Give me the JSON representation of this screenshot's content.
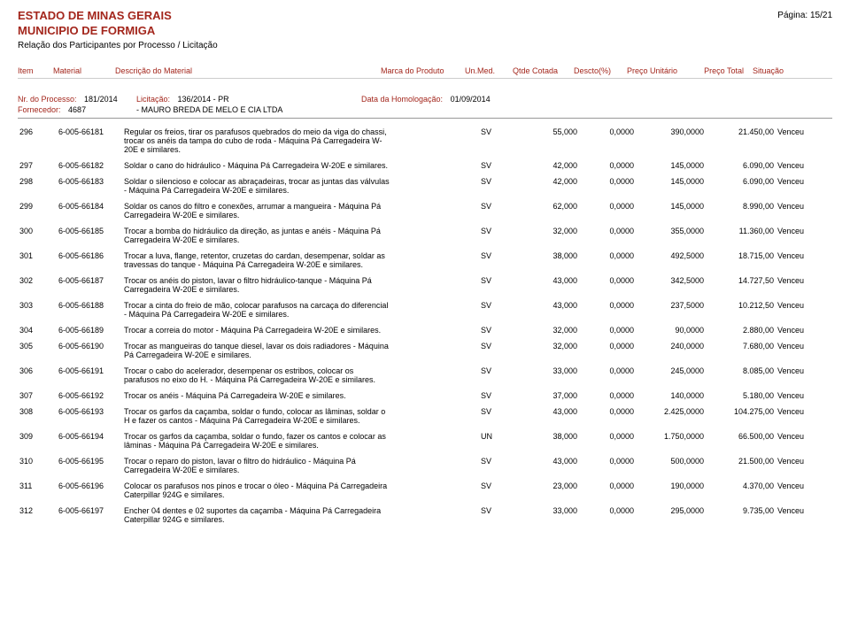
{
  "header": {
    "line1": "ESTADO DE MINAS GERAIS",
    "line2": "MUNICIPIO DE FORMIGA",
    "line3": "Relação dos Participantes por Processo / Licitação",
    "page_no": "Página: 15/21"
  },
  "columns": {
    "item": "Item",
    "material": "Material",
    "descricao": "Descrição do Material",
    "marca": "Marca do Produto",
    "unmed": "Un.Med.",
    "qtde": "Qtde Cotada",
    "descto": "Descto(%)",
    "unit": "Preço Unitário",
    "total": "Preço Total",
    "situacao": "Situação"
  },
  "processo": {
    "nr_lbl": "Nr. do Processo:",
    "nr_val": "181/2014",
    "licit_lbl": "Licitação:",
    "licit_val": "136/2014 - PR",
    "homolog_lbl": "Data da Homologação:",
    "homolog_val": "01/09/2014",
    "forn_lbl": "Fornecedor:",
    "forn_cod": "4687",
    "forn_nome": "- MAURO BREDA DE MELO E CIA LTDA"
  },
  "rows": [
    {
      "item": "296",
      "material": "6-005-66181",
      "desc": "Regular os freios, tirar os parafusos quebrados do meio da viga do chassi, trocar os anéis da tampa do cubo de roda - Máquina Pá Carregadeira W-20E e similares.",
      "marca": "",
      "un": "SV",
      "qtde": "55,000",
      "descto": "0,0000",
      "unit": "390,0000",
      "total": "21.450,00",
      "sit": "Venceu"
    },
    {
      "item": "297",
      "material": "6-005-66182",
      "desc": "Soldar o cano do hidráulico - Máquina Pá Carregadeira W-20E e similares.",
      "marca": "",
      "un": "SV",
      "qtde": "42,000",
      "descto": "0,0000",
      "unit": "145,0000",
      "total": "6.090,00",
      "sit": "Venceu"
    },
    {
      "item": "298",
      "material": "6-005-66183",
      "desc": "Soldar o silencioso e colocar as abraçadeiras, trocar as juntas das válvulas - Máquina Pá Carregadeira W-20E e similares.",
      "marca": "",
      "un": "SV",
      "qtde": "42,000",
      "descto": "0,0000",
      "unit": "145,0000",
      "total": "6.090,00",
      "sit": "Venceu"
    },
    {
      "item": "299",
      "material": "6-005-66184",
      "desc": "Soldar os canos do filtro e conexões, arrumar a mangueira - Máquina Pá Carregadeira W-20E e similares.",
      "marca": "",
      "un": "SV",
      "qtde": "62,000",
      "descto": "0,0000",
      "unit": "145,0000",
      "total": "8.990,00",
      "sit": "Venceu"
    },
    {
      "item": "300",
      "material": "6-005-66185",
      "desc": "Trocar a bomba do hidráulico da direção, as juntas e anéis - Máquina Pá Carregadeira W-20E e similares.",
      "marca": "",
      "un": "SV",
      "qtde": "32,000",
      "descto": "0,0000",
      "unit": "355,0000",
      "total": "11.360,00",
      "sit": "Venceu"
    },
    {
      "item": "301",
      "material": "6-005-66186",
      "desc": "Trocar a luva, flange, retentor, cruzetas do cardan, desempenar, soldar as travessas do tanque - Máquina Pá Carregadeira W-20E e similares.",
      "marca": "",
      "un": "SV",
      "qtde": "38,000",
      "descto": "0,0000",
      "unit": "492,5000",
      "total": "18.715,00",
      "sit": "Venceu"
    },
    {
      "item": "302",
      "material": "6-005-66187",
      "desc": "Trocar os anéis do piston, lavar o filtro hidráulico-tanque - Máquina Pá Carregadeira W-20E e similares.",
      "marca": "",
      "un": "SV",
      "qtde": "43,000",
      "descto": "0,0000",
      "unit": "342,5000",
      "total": "14.727,50",
      "sit": "Venceu"
    },
    {
      "item": "303",
      "material": "6-005-66188",
      "desc": "Trocar a cinta do freio de mão, colocar parafusos na carcaça do diferencial - Máquina Pá Carregadeira W-20E e similares.",
      "marca": "",
      "un": "SV",
      "qtde": "43,000",
      "descto": "0,0000",
      "unit": "237,5000",
      "total": "10.212,50",
      "sit": "Venceu"
    },
    {
      "item": "304",
      "material": "6-005-66189",
      "desc": "Trocar a correia do motor - Máquina Pá Carregadeira W-20E e similares.",
      "marca": "",
      "un": "SV",
      "qtde": "32,000",
      "descto": "0,0000",
      "unit": "90,0000",
      "total": "2.880,00",
      "sit": "Venceu"
    },
    {
      "item": "305",
      "material": "6-005-66190",
      "desc": "Trocar as mangueiras do tanque diesel, lavar os dois radiadores - Máquina Pá Carregadeira W-20E e similares.",
      "marca": "",
      "un": "SV",
      "qtde": "32,000",
      "descto": "0,0000",
      "unit": "240,0000",
      "total": "7.680,00",
      "sit": "Venceu"
    },
    {
      "item": "306",
      "material": "6-005-66191",
      "desc": "Trocar o cabo do acelerador, desempenar os estribos, colocar os parafusos no eixo do H.  - Máquina Pá Carregadeira W-20E e similares.",
      "marca": "",
      "un": "SV",
      "qtde": "33,000",
      "descto": "0,0000",
      "unit": "245,0000",
      "total": "8.085,00",
      "sit": "Venceu"
    },
    {
      "item": "307",
      "material": "6-005-66192",
      "desc": "Trocar os anéis - Máquina Pá Carregadeira W-20E e similares.",
      "marca": "",
      "un": "SV",
      "qtde": "37,000",
      "descto": "0,0000",
      "unit": "140,0000",
      "total": "5.180,00",
      "sit": "Venceu"
    },
    {
      "item": "308",
      "material": "6-005-66193",
      "desc": "Trocar os garfos da caçamba, soldar o fundo, colocar as lâminas, soldar o H e fazer os cantos - Máquina Pá Carregadeira W-20E e similares.",
      "marca": "",
      "un": "SV",
      "qtde": "43,000",
      "descto": "0,0000",
      "unit": "2.425,0000",
      "total": "104.275,00",
      "sit": "Venceu"
    },
    {
      "item": "309",
      "material": "6-005-66194",
      "desc": "Trocar os garfos da caçamba, soldar o fundo, fazer os cantos e colocar as lâminas - Máquina Pá Carregadeira W-20E e similares.",
      "marca": "",
      "un": "UN",
      "qtde": "38,000",
      "descto": "0,0000",
      "unit": "1.750,0000",
      "total": "66.500,00",
      "sit": "Venceu"
    },
    {
      "item": "310",
      "material": "6-005-66195",
      "desc": "Trocar o reparo do piston, lavar o filtro do hidráulico - Máquina Pá Carregadeira W-20E e similares.",
      "marca": "",
      "un": "SV",
      "qtde": "43,000",
      "descto": "0,0000",
      "unit": "500,0000",
      "total": "21.500,00",
      "sit": "Venceu"
    },
    {
      "item": "311",
      "material": "6-005-66196",
      "desc": "Colocar os parafusos nos pinos e trocar o óleo - Máquina Pá Carregadeira Caterpillar 924G e similares.",
      "marca": "",
      "un": "SV",
      "qtde": "23,000",
      "descto": "0,0000",
      "unit": "190,0000",
      "total": "4.370,00",
      "sit": "Venceu"
    },
    {
      "item": "312",
      "material": "6-005-66197",
      "desc": "Encher 04 dentes e 02 suportes da caçamba - Máquina Pá Carregadeira Caterpillar 924G e similares.",
      "marca": "",
      "un": "SV",
      "qtde": "33,000",
      "descto": "0,0000",
      "unit": "295,0000",
      "total": "9.735,00",
      "sit": "Venceu"
    }
  ]
}
